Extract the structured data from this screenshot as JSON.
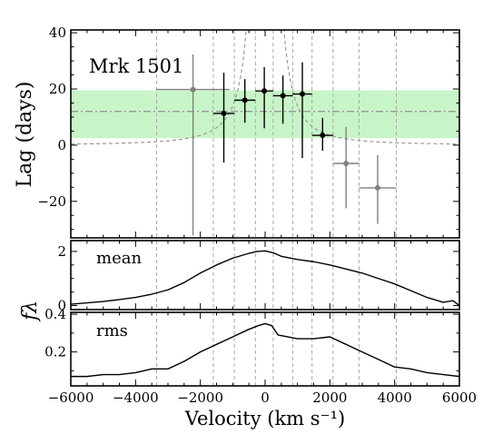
{
  "chart_data": {
    "type": "scatter",
    "title": "",
    "annotation": "Mrk 1501",
    "xlabel": "Velocity (km s⁻¹)",
    "xlim": [
      -6000,
      6000
    ],
    "x_ticks": [
      -6000,
      -4000,
      -2000,
      0,
      2000,
      4000,
      6000
    ],
    "x_tick_labels": [
      "−6000",
      "−4000",
      "−2000",
      "0",
      "2000",
      "4000",
      "6000"
    ],
    "bin_edges": [
      -3350,
      -1600,
      -950,
      -300,
      250,
      850,
      1450,
      2100,
      2900,
      4050
    ],
    "lag_panel": {
      "ylabel": "Lag (days)",
      "ylim": [
        -33,
        41
      ],
      "y_ticks": [
        -20,
        0,
        20,
        40
      ],
      "y_tick_labels": [
        "−20",
        "0",
        "20",
        "40"
      ],
      "mean_lag": 12,
      "mean_lag_band": [
        2.5,
        19.5
      ],
      "band_color": "#c8f5c8",
      "envelope": "virial curve (dashed)",
      "points": [
        {
          "x": -2225,
          "y": 19.8,
          "xerr": 1125,
          "yerr_lo": 52,
          "yerr_hi": 12.5,
          "color": "#808080"
        },
        {
          "x": -1275,
          "y": 11.3,
          "xerr": 325,
          "yerr_lo": 17.5,
          "yerr_hi": 14.5,
          "color": "#000000"
        },
        {
          "x": -625,
          "y": 16.0,
          "xerr": 325,
          "yerr_lo": 8.0,
          "yerr_hi": 7.5,
          "color": "#000000"
        },
        {
          "x": -25,
          "y": 19.3,
          "xerr": 275,
          "yerr_lo": 13.3,
          "yerr_hi": 8.5,
          "color": "#000000"
        },
        {
          "x": 550,
          "y": 17.6,
          "xerr": 300,
          "yerr_lo": 10.0,
          "yerr_hi": 7.2,
          "color": "#000000"
        },
        {
          "x": 1150,
          "y": 18.2,
          "xerr": 300,
          "yerr_lo": 22.8,
          "yerr_hi": 11.3,
          "color": "#000000"
        },
        {
          "x": 1775,
          "y": 3.5,
          "xerr": 325,
          "yerr_lo": 5.5,
          "yerr_hi": 6.2,
          "color": "#000000"
        },
        {
          "x": 2500,
          "y": -6.5,
          "xerr": 400,
          "yerr_lo": 16.0,
          "yerr_hi": 13.0,
          "color": "#808080"
        },
        {
          "x": 3475,
          "y": -15.2,
          "xerr": 575,
          "yerr_lo": 12.8,
          "yerr_hi": 11.7,
          "color": "#808080"
        }
      ]
    },
    "shared_ylabel": "fλ",
    "mean_panel": {
      "label": "mean",
      "ylim": [
        -0.15,
        2.4
      ],
      "y_ticks": [
        0,
        2
      ],
      "y_tick_labels": [
        "0",
        "2"
      ],
      "x": [
        -6000,
        -5500,
        -5000,
        -4500,
        -4000,
        -3500,
        -3000,
        -2500,
        -2000,
        -1500,
        -1000,
        -500,
        -250,
        0,
        250,
        500,
        1000,
        1500,
        2000,
        2500,
        3000,
        3500,
        4000,
        4500,
        5000,
        5500,
        5800,
        6000
      ],
      "y": [
        0.05,
        0.1,
        0.15,
        0.22,
        0.3,
        0.42,
        0.58,
        0.85,
        1.2,
        1.5,
        1.75,
        1.93,
        2.0,
        2.02,
        1.95,
        1.82,
        1.7,
        1.62,
        1.5,
        1.35,
        1.2,
        1.0,
        0.8,
        0.55,
        0.3,
        0.12,
        0.18,
        0.0
      ]
    },
    "rms_panel": {
      "label": "rms",
      "ylim": [
        0.02,
        0.41
      ],
      "y_ticks": [
        0.2,
        0.4
      ],
      "y_tick_labels": [
        "0.2",
        "0.4"
      ],
      "x": [
        -6000,
        -5500,
        -5000,
        -4500,
        -4000,
        -3500,
        -3000,
        -2500,
        -2000,
        -1500,
        -1000,
        -500,
        -200,
        0,
        200,
        400,
        1000,
        1500,
        2000,
        2500,
        3000,
        3500,
        4000,
        4500,
        5000,
        5500,
        6000
      ],
      "y": [
        0.07,
        0.07,
        0.08,
        0.08,
        0.09,
        0.11,
        0.11,
        0.15,
        0.2,
        0.24,
        0.28,
        0.32,
        0.34,
        0.35,
        0.34,
        0.29,
        0.27,
        0.27,
        0.28,
        0.24,
        0.2,
        0.16,
        0.12,
        0.11,
        0.09,
        0.08,
        0.07
      ]
    }
  }
}
